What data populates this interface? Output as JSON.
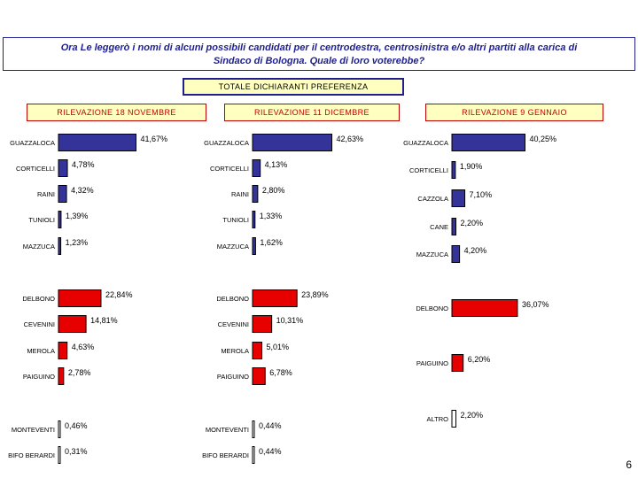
{
  "question": {
    "line1": "Ora Le leggerò i nomi di alcuni possibili candidati per il centrodestra, centrosinistra e/o altri partiti alla carica di",
    "line2": "Sindaco di Bologna. Quale di loro voterebbe?"
  },
  "summary_label": "TOTALE DICHIARANTI PREFERENZA",
  "page_number": "6",
  "colors": {
    "blue": "#333399",
    "red": "#e60000",
    "white": "#ffffff",
    "frame": "#1f1f8f"
  },
  "chart_data": [
    {
      "type": "bar",
      "orientation": "horizontal",
      "title": "RILEVAZIONE 18 NOVEMBRE",
      "xlim": [
        0,
        45
      ],
      "categories": [
        "GUAZZALOCA",
        "CORTICELLI",
        "RAINI",
        "TUNIOLI",
        "MAZZUCA",
        "DELBONO",
        "CEVENINI",
        "MEROLA",
        "PAIGUINO",
        "MONTEVENTI",
        "BIFO BERARDI"
      ],
      "values": [
        41.67,
        4.78,
        4.32,
        1.39,
        1.23,
        22.84,
        14.81,
        4.63,
        2.78,
        0.46,
        0.31
      ],
      "labels": [
        "41,67%",
        "4,78%",
        "4,32%",
        "1,39%",
        "1,23%",
        "22,84%",
        "14,81%",
        "4,63%",
        "2,78%",
        "0,46%",
        "0,31%"
      ],
      "groups": [
        "blue",
        "blue",
        "blue",
        "blue",
        "blue",
        "red",
        "red",
        "red",
        "red",
        "white",
        "white"
      ]
    },
    {
      "type": "bar",
      "orientation": "horizontal",
      "title": "RILEVAZIONE 11 DICEMBRE",
      "xlim": [
        0,
        45
      ],
      "categories": [
        "GUAZZALOCA",
        "CORTICELLI",
        "RAINI",
        "TUNIOLI",
        "MAZZUCA",
        "DELBONO",
        "CEVENINI",
        "MEROLA",
        "PAIGUINO",
        "MONTEVENTI",
        "BIFO BERARDI"
      ],
      "values": [
        42.63,
        4.13,
        2.8,
        1.33,
        1.62,
        23.89,
        10.31,
        5.01,
        6.78,
        0.44,
        0.44
      ],
      "labels": [
        "42,63%",
        "4,13%",
        "2,80%",
        "1,33%",
        "1,62%",
        "23,89%",
        "10,31%",
        "5,01%",
        "6,78%",
        "0,44%",
        "0,44%"
      ],
      "groups": [
        "blue",
        "blue",
        "blue",
        "blue",
        "blue",
        "red",
        "red",
        "red",
        "red",
        "white",
        "white"
      ]
    },
    {
      "type": "bar",
      "orientation": "horizontal",
      "title": "RILEVAZIONE 9 GENNAIO",
      "xlim": [
        0,
        45
      ],
      "categories": [
        "GUAZZALOCA",
        "CORTICELLI",
        "CAZZOLA",
        "CANE",
        "MAZZUCA",
        "DELBONO",
        "PAIGUINO",
        "ALTRO"
      ],
      "values": [
        40.25,
        1.9,
        7.1,
        2.2,
        4.2,
        36.07,
        6.2,
        2.2
      ],
      "labels": [
        "40,25%",
        "1,90%",
        "7,10%",
        "2,20%",
        "4,20%",
        "36,07%",
        "6,20%",
        "2,20%"
      ],
      "groups": [
        "blue",
        "blue",
        "blue",
        "blue",
        "blue",
        "red",
        "red",
        "white"
      ]
    }
  ]
}
